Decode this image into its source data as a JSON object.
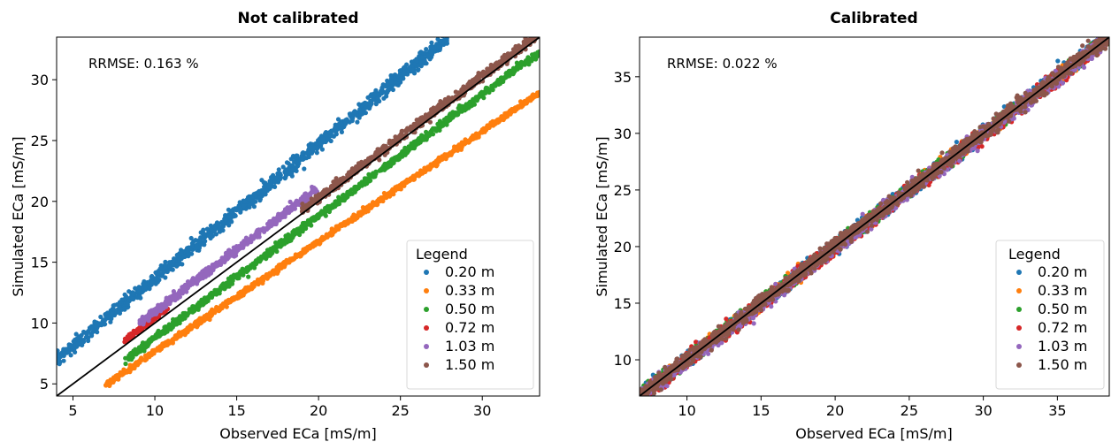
{
  "chart_data": [
    {
      "type": "scatter",
      "title": "Not calibrated",
      "xlabel": "Observed ECa [mS/m]",
      "ylabel": "Simulated ECa [mS/m]",
      "xlim": [
        4.0,
        33.5
      ],
      "ylim": [
        4.0,
        33.5
      ],
      "xticks": [
        5,
        10,
        15,
        20,
        25,
        30
      ],
      "yticks": [
        5,
        10,
        15,
        20,
        25,
        30
      ],
      "annotation": "RRMSE: 0.163 %",
      "identity_line": true,
      "legend_title": "Legend",
      "legend_position": "lower-right",
      "series": [
        {
          "name": "0.20 m",
          "color": "#1f77b4",
          "x_range": [
            4.0,
            27.8
          ],
          "slope": 1.105,
          "intercept": 2.6,
          "noise": 0.28
        },
        {
          "name": "0.33 m",
          "color": "#ff7f0e",
          "x_range": [
            7.0,
            33.5
          ],
          "slope": 0.905,
          "intercept": -1.4,
          "noise": 0.1
        },
        {
          "name": "0.50 m",
          "color": "#2ca02c",
          "x_range": [
            8.2,
            33.5
          ],
          "slope": 1.0,
          "intercept": -1.2,
          "noise": 0.14
        },
        {
          "name": "0.72 m",
          "color": "#d62728",
          "x_range": [
            8.2,
            10.8
          ],
          "slope": 1.02,
          "intercept": 0.25,
          "noise": 0.12
        },
        {
          "name": "1.03 m",
          "color": "#9467bd",
          "x_range": [
            9.0,
            20.0
          ],
          "slope": 1.02,
          "intercept": 0.75,
          "noise": 0.16
        },
        {
          "name": "1.50 m",
          "color": "#8c564b",
          "x_range": [
            19.0,
            33.5
          ],
          "slope": 1.0,
          "intercept": 0.28,
          "noise": 0.18
        }
      ]
    },
    {
      "type": "scatter",
      "title": "Calibrated",
      "xlabel": "Observed ECa [mS/m]",
      "ylabel": "Simulated ECa [mS/m]",
      "xlim": [
        6.8,
        38.5
      ],
      "ylim": [
        6.8,
        38.5
      ],
      "xticks": [
        10,
        15,
        20,
        25,
        30,
        35
      ],
      "yticks": [
        10,
        15,
        20,
        25,
        30,
        35
      ],
      "annotation": "RRMSE: 0.022 %",
      "identity_line": true,
      "legend_title": "Legend",
      "legend_position": "lower-right",
      "series": [
        {
          "name": "0.20 m",
          "color": "#1f77b4",
          "x_range": [
            6.8,
            38.5
          ],
          "slope": 1.0,
          "intercept": 0.0,
          "noise": 0.3
        },
        {
          "name": "0.33 m",
          "color": "#ff7f0e",
          "x_range": [
            6.8,
            38.5
          ],
          "slope": 1.0,
          "intercept": 0.0,
          "noise": 0.25
        },
        {
          "name": "0.50 m",
          "color": "#2ca02c",
          "x_range": [
            6.8,
            38.5
          ],
          "slope": 1.0,
          "intercept": 0.0,
          "noise": 0.25
        },
        {
          "name": "0.72 m",
          "color": "#d62728",
          "x_range": [
            6.8,
            38.5
          ],
          "slope": 1.0,
          "intercept": -0.1,
          "noise": 0.3
        },
        {
          "name": "1.03 m",
          "color": "#9467bd",
          "x_range": [
            6.8,
            38.5
          ],
          "slope": 1.0,
          "intercept": -0.1,
          "noise": 0.3
        },
        {
          "name": "1.50 m",
          "color": "#8c564b",
          "x_range": [
            6.8,
            38.5
          ],
          "slope": 1.0,
          "intercept": 0.05,
          "noise": 0.3
        }
      ]
    }
  ]
}
